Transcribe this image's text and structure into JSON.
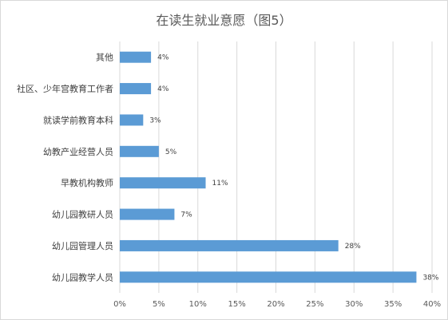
{
  "chart_data": {
    "type": "bar",
    "orientation": "horizontal",
    "title": "在读生就业意愿（图5）",
    "categories": [
      "其他",
      "社区、少年宫教育工作者",
      "就读学前教育本科",
      "幼教产业经营人员",
      "早教机构教师",
      "幼儿园教研人员",
      "幼儿园管理人员",
      "幼儿园教学人员"
    ],
    "values": [
      4,
      4,
      3,
      5,
      11,
      7,
      28,
      38
    ],
    "value_labels": [
      "4%",
      "4%",
      "3%",
      "5%",
      "11%",
      "7%",
      "28%",
      "38%"
    ],
    "x_ticks": [
      "0%",
      "5%",
      "10%",
      "15%",
      "20%",
      "25%",
      "30%",
      "35%",
      "40%"
    ],
    "xlim": [
      0,
      40
    ],
    "xlabel": "",
    "ylabel": "",
    "grid": "vertical",
    "legend": "none",
    "bar_color": "#5b9bd5",
    "grid_color": "#d9d9d9"
  }
}
